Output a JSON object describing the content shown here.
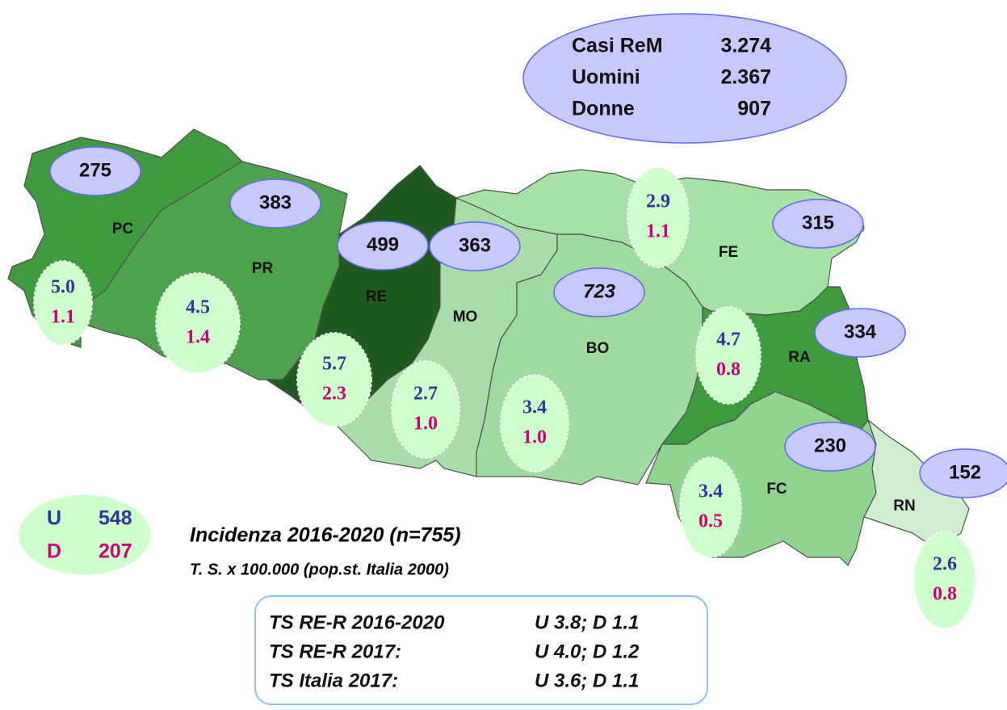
{
  "summary": {
    "rows": [
      {
        "label": "Casi ReM",
        "value": "3.274"
      },
      {
        "label": "Uomini",
        "value": "2.367"
      },
      {
        "label": "Donne",
        "value": "907"
      }
    ]
  },
  "provinces": [
    {
      "code": "PC",
      "cases": "275",
      "rate_men": "5.0",
      "rate_women": "1.1"
    },
    {
      "code": "PR",
      "cases": "383",
      "rate_men": "4.5",
      "rate_women": "1.4"
    },
    {
      "code": "RE",
      "cases": "499",
      "rate_men": "5.7",
      "rate_women": "2.3"
    },
    {
      "code": "MO",
      "cases": "363",
      "rate_men": "2.7",
      "rate_women": "1.0"
    },
    {
      "code": "BO",
      "cases": "723",
      "rate_men": "3.4",
      "rate_women": "1.0"
    },
    {
      "code": "FE",
      "cases": "315",
      "rate_men": "2.9",
      "rate_women": "1.1"
    },
    {
      "code": "RA",
      "cases": "334",
      "rate_men": "4.7",
      "rate_women": "0.8"
    },
    {
      "code": "FC",
      "cases": "230",
      "rate_men": "3.4",
      "rate_women": "0.5"
    },
    {
      "code": "RN",
      "cases": "152",
      "rate_men": "2.6",
      "rate_women": "0.8"
    }
  ],
  "totals": {
    "men_label": "U",
    "men": "548",
    "women_label": "D",
    "women": "207"
  },
  "caption": {
    "title": "Incidenza 2016-2020 (n=755)",
    "subtitle": "T. S. x 100.000 (pop.st. Italia 2000)"
  },
  "reference": {
    "rows": [
      {
        "label": "TS RE-R 2016-2020",
        "value": "U 3.8; D 1.1"
      },
      {
        "label": "TS RE-R 2017:",
        "value": "U 4.0; D 1.2"
      },
      {
        "label": "TS Italia 2017:",
        "value": "U 3.6; D 1.1"
      }
    ]
  }
}
